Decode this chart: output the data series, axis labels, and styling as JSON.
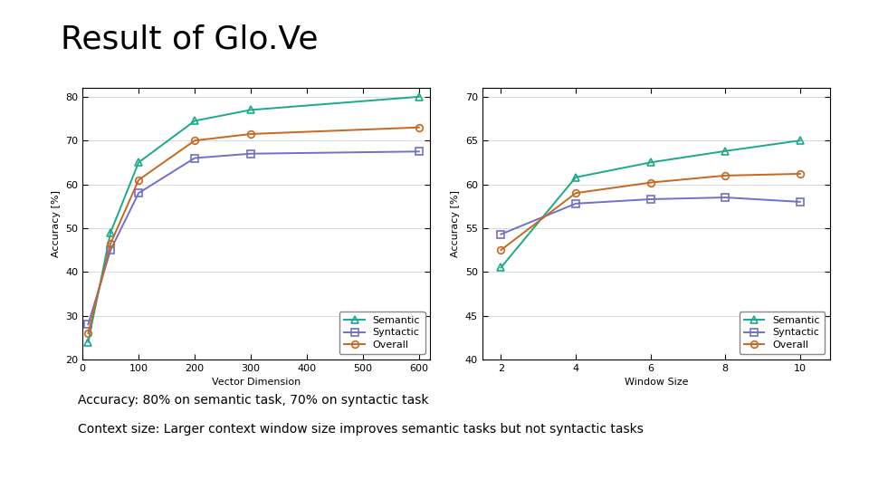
{
  "title": "Result of Glo.Ve",
  "subtitle1": "Accuracy: 80% on semantic task, 70% on syntactic task",
  "subtitle2": "Context size: Larger context window size improves semantic tasks but not syntactic tasks",
  "plot1": {
    "xlabel": "Vector Dimension",
    "ylabel": "Accuracy [%]",
    "xlim": [
      0,
      620
    ],
    "ylim": [
      20,
      82
    ],
    "xticks": [
      0,
      100,
      200,
      300,
      400,
      500,
      600
    ],
    "yticks": [
      20,
      30,
      40,
      50,
      60,
      70,
      80
    ],
    "semantic_x": [
      10,
      50,
      100,
      200,
      300,
      600
    ],
    "semantic_y": [
      24,
      49,
      65,
      74.5,
      77,
      80
    ],
    "syntactic_x": [
      10,
      50,
      100,
      200,
      300,
      600
    ],
    "syntactic_y": [
      28,
      45,
      58,
      66,
      67,
      67.5
    ],
    "overall_x": [
      10,
      50,
      100,
      200,
      300,
      600
    ],
    "overall_y": [
      26,
      46.5,
      61,
      70,
      71.5,
      73
    ]
  },
  "plot2": {
    "xlabel": "Window Size",
    "ylabel": "Accuracy [%]",
    "xlim": [
      1.5,
      10.8
    ],
    "ylim": [
      40,
      71
    ],
    "xticks": [
      2,
      4,
      6,
      8,
      10
    ],
    "yticks": [
      40,
      45,
      50,
      55,
      60,
      65,
      70
    ],
    "semantic_x": [
      2,
      4,
      6,
      8,
      10
    ],
    "semantic_y": [
      50.5,
      60.8,
      62.5,
      63.8,
      65
    ],
    "syntactic_x": [
      2,
      4,
      6,
      8,
      10
    ],
    "syntactic_y": [
      54.3,
      57.8,
      58.3,
      58.5,
      58
    ],
    "overall_x": [
      2,
      4,
      6,
      8,
      10
    ],
    "overall_y": [
      52.5,
      59.0,
      60.2,
      61.0,
      61.2
    ]
  },
  "semantic_color": "#1aaa8a",
  "syntactic_color": "#7070c8",
  "overall_color": "#c86820",
  "linewidth": 1.4,
  "markersize": 6,
  "legend_fontsize": 8,
  "axis_fontsize": 8,
  "title_fontsize": 26,
  "caption_fontsize": 10,
  "background_color": "#ffffff"
}
